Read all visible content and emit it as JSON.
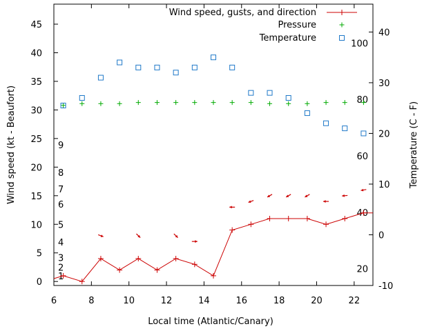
{
  "chart_data": {
    "type": "line",
    "xlabel": "Local time (Atlantic/Canary)",
    "ylabel": "Wind speed (kt - Beaufort)",
    "y2label": "Temperature (C - F)",
    "xlim": [
      6,
      23
    ],
    "ylim": [
      -0.7,
      48.5
    ],
    "y2lim": [
      -10,
      45.5
    ],
    "x_ticks": [
      "6",
      "8",
      "10",
      "12",
      "14",
      "16",
      "18",
      "20",
      "22"
    ],
    "y_ticks": [
      "0",
      "5",
      "10",
      "15",
      "20",
      "25",
      "30",
      "35",
      "40",
      "45"
    ],
    "y2_ticks": [
      "-10",
      "0",
      "10",
      "20",
      "30",
      "40"
    ],
    "beaufort_ticks": [
      {
        "label": "1",
        "value": 1.0
      },
      {
        "label": "2",
        "value": 2.5
      },
      {
        "label": "3",
        "value": 4.2
      },
      {
        "label": "4",
        "value": 6.9
      },
      {
        "label": "5",
        "value": 10.0
      },
      {
        "label": "6",
        "value": 13.5
      },
      {
        "label": "7",
        "value": 16.2
      },
      {
        "label": "8",
        "value": 19.1
      },
      {
        "label": "9",
        "value": 23.9
      }
    ],
    "fahrenheit_ticks": [
      {
        "label": "20",
        "value": -6.7
      },
      {
        "label": "40",
        "value": 4.4
      },
      {
        "label": "60",
        "value": 15.6
      },
      {
        "label": "80",
        "value": 26.7
      },
      {
        "label": "100",
        "value": 37.8
      }
    ],
    "legend_position": "top-right",
    "series": [
      {
        "name": "Wind speed, gusts, and direction",
        "color": "#cc0000",
        "marker": "plus-line",
        "x": [
          6,
          6.5,
          7.5,
          8.5,
          9.5,
          10.5,
          11.5,
          12.5,
          13.5,
          14.5,
          15.5,
          16.5,
          17.5,
          18.5,
          19.5,
          20.5,
          21.5,
          22.5,
          23
        ],
        "y": [
          0.5,
          1,
          0,
          4,
          2,
          4,
          2,
          4,
          3,
          1,
          9,
          10,
          11,
          11,
          11,
          10,
          11,
          12,
          12
        ]
      },
      {
        "name": "Pressure",
        "color": "#00aa00",
        "marker": "plus",
        "x": [
          6.5,
          7.5,
          8.5,
          9.5,
          10.5,
          11.5,
          12.5,
          13.5,
          14.5,
          15.5,
          16.5,
          17.5,
          18.5,
          19.5,
          20.5,
          21.5,
          22.5
        ],
        "y": [
          30.8,
          31.1,
          31.1,
          31.1,
          31.3,
          31.3,
          31.3,
          31.3,
          31.3,
          31.3,
          31.3,
          31.1,
          31.1,
          31.1,
          31.3,
          31.3,
          31.3
        ]
      },
      {
        "name": "Temperature",
        "color": "#1e78c8",
        "marker": "square",
        "axis": "y2",
        "x": [
          6.5,
          7.5,
          8.5,
          9.5,
          10.5,
          11.5,
          12.5,
          13.5,
          14.5,
          15.5,
          16.5,
          17.5,
          18.5,
          19.5,
          20.5,
          21.5,
          22.5
        ],
        "y": [
          25.5,
          27,
          31,
          34,
          33,
          33,
          32,
          33,
          35,
          33,
          28,
          28,
          27,
          24,
          22,
          21,
          20
        ]
      }
    ],
    "wind_direction_arrows": [
      {
        "x": 8.5,
        "y": 8,
        "dir_deg": 110
      },
      {
        "x": 10.5,
        "y": 8,
        "dir_deg": 135
      },
      {
        "x": 12.5,
        "y": 8,
        "dir_deg": 135
      },
      {
        "x": 13.5,
        "y": 7,
        "dir_deg": 90
      },
      {
        "x": 15.5,
        "y": 13,
        "dir_deg": 270
      },
      {
        "x": 16.5,
        "y": 14,
        "dir_deg": 250
      },
      {
        "x": 17.5,
        "y": 15,
        "dir_deg": 240
      },
      {
        "x": 18.5,
        "y": 15,
        "dir_deg": 240
      },
      {
        "x": 19.5,
        "y": 15,
        "dir_deg": 240
      },
      {
        "x": 20.5,
        "y": 14,
        "dir_deg": 270
      },
      {
        "x": 21.5,
        "y": 15,
        "dir_deg": 265
      },
      {
        "x": 22.5,
        "y": 16,
        "dir_deg": 260
      }
    ]
  }
}
